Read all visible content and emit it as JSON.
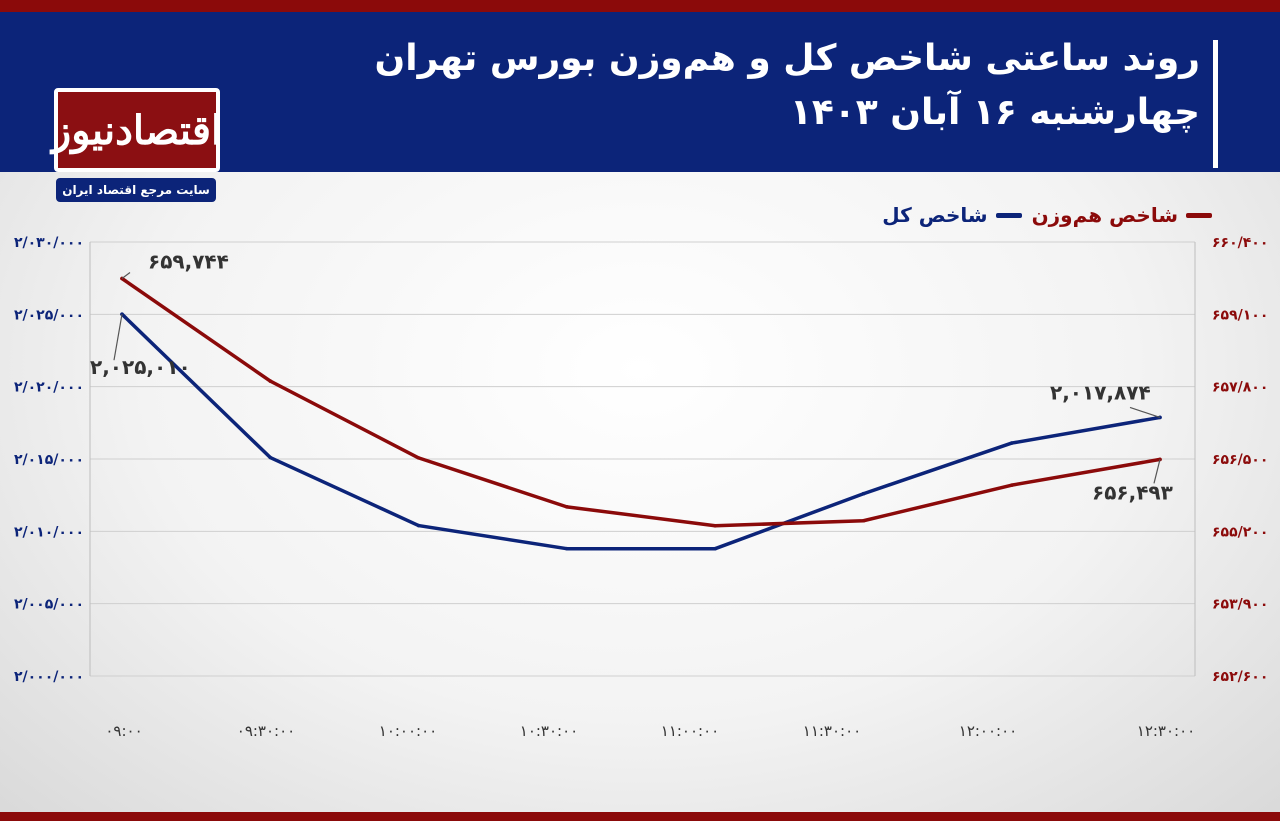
{
  "header": {
    "title": "روند ساعتی شاخص کل و هم‌وزن بورس تهران",
    "subtitle": "چهارشنبه ۱۶ آبان ۱۴۰۳"
  },
  "brand": {
    "logo_text": "اقتصادنیوز",
    "tagline": "سایت مرجع اقتصاد ایران"
  },
  "colors": {
    "header_bg": "#0c2479",
    "accent_red": "#8b0a0a",
    "series_total": "#0c2479",
    "series_equal": "#8b0a0a",
    "grid": "#cfcfcf",
    "left_tick": "#0c2479",
    "right_tick": "#8b0a0a"
  },
  "legend": [
    {
      "label": "شاخص هم‌وزن",
      "color": "#8b0a0a"
    },
    {
      "label": "شاخص کل",
      "color": "#0c2479"
    }
  ],
  "chart_data": {
    "type": "line",
    "title": "روند ساعتی شاخص کل و هم‌وزن بورس تهران",
    "categories": [
      "۰۹:۰۰",
      "۰۹:۳۰:۰۰",
      "۱۰:۰۰:۰۰",
      "۱۰:۳۰:۰۰",
      "۱۱:۰۰:۰۰",
      "۱۱:۳۰:۰۰",
      "۱۲:۰۰:۰۰",
      "۱۲:۳۰:۰۰"
    ],
    "x_tick_labels": [
      "۰۹:۰۰",
      "۰۹:۳۰:۰۰",
      "۱۰:۰۰:۰۰",
      "۱۰:۳۰:۰۰",
      "۱۱:۰۰:۰۰",
      "۱۱:۳۰:۰۰",
      "۱۲:۰۰:۰۰",
      "۱۲:۳۰:۰۰"
    ],
    "series": [
      {
        "name": "شاخص کل",
        "axis": "left",
        "color": "#0c2479",
        "values": [
          2025010,
          2015100,
          2010400,
          2008800,
          2008800,
          2012600,
          2016100,
          2017874
        ]
      },
      {
        "name": "شاخص هم‌وزن",
        "axis": "right",
        "color": "#8b0a0a",
        "values": [
          659744,
          657900,
          656520,
          655640,
          655300,
          655390,
          656030,
          656493
        ]
      }
    ],
    "y_left": {
      "ylim": [
        2000000,
        2030000
      ],
      "ticks": [
        2000000,
        2005000,
        2010000,
        2015000,
        2020000,
        2025000,
        2030000
      ],
      "tick_labels": [
        "۲/۰۰۰/۰۰۰",
        "۲/۰۰۵/۰۰۰",
        "۲/۰۱۰/۰۰۰",
        "۲/۰۱۵/۰۰۰",
        "۲/۰۲۰/۰۰۰",
        "۲/۰۲۵/۰۰۰",
        "۲/۰۳۰/۰۰۰"
      ]
    },
    "y_right": {
      "ylim": [
        652600,
        660400
      ],
      "ticks": [
        652600,
        653900,
        655200,
        656500,
        657800,
        659100,
        660400
      ],
      "tick_labels": [
        "۶۵۲/۶۰۰",
        "۶۵۳/۹۰۰",
        "۶۵۵/۲۰۰",
        "۶۵۶/۵۰۰",
        "۶۵۷/۸۰۰",
        "۶۵۹/۱۰۰",
        "۶۶۰/۴۰۰"
      ]
    },
    "annotations": [
      {
        "series": 1,
        "index": 0,
        "text": "۶۵۹,۷۴۴"
      },
      {
        "series": 0,
        "index": 0,
        "text": "۲,۰۲۵,۰۱۰"
      },
      {
        "series": 0,
        "index": 7,
        "text": "۲,۰۱۷,۸۷۴"
      },
      {
        "series": 1,
        "index": 7,
        "text": "۶۵۶,۴۹۳"
      }
    ],
    "grid": true,
    "legend_position": "top-right"
  }
}
